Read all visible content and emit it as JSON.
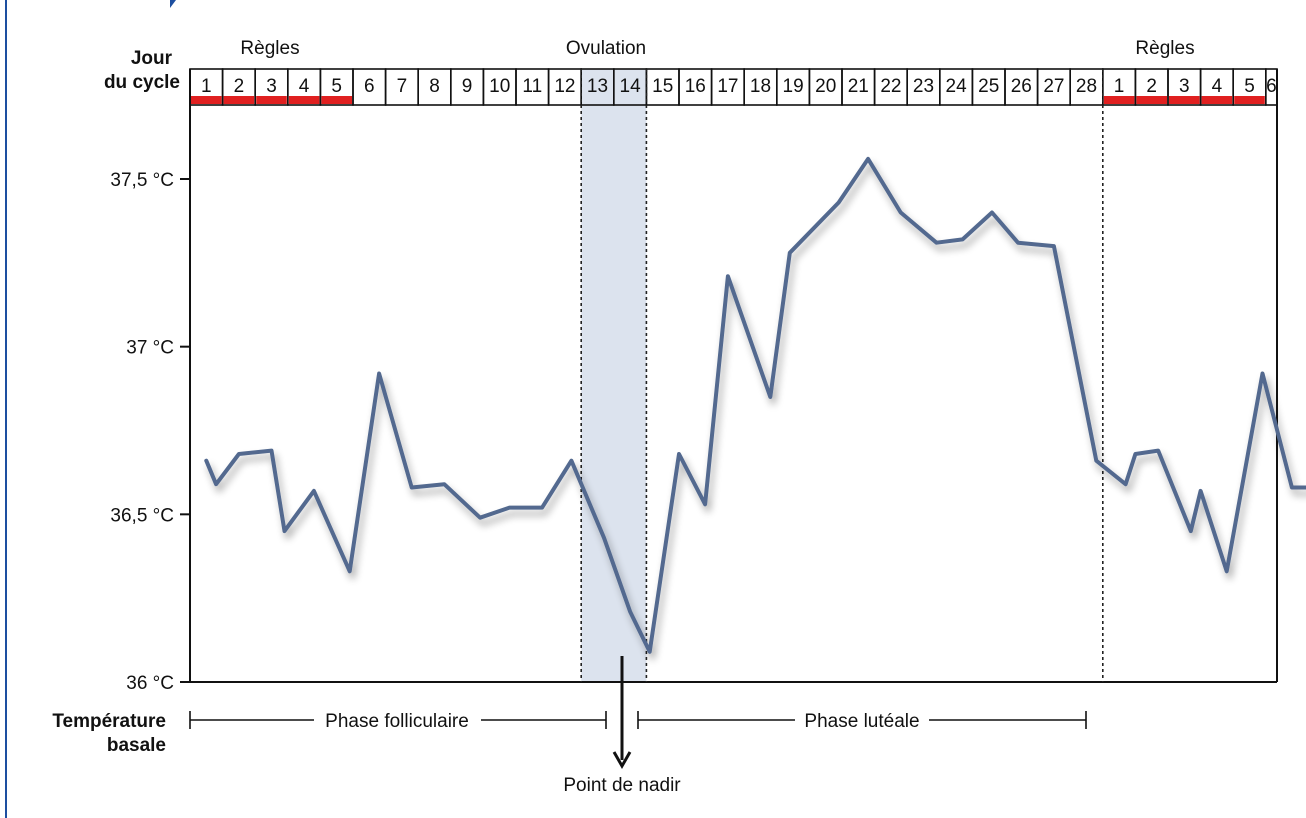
{
  "header_labels": {
    "jour": "Jour",
    "du_cycle": "du cycle",
    "regles_left": "Règles",
    "ovulation": "Ovulation",
    "regles_right": "Règles"
  },
  "temperature_label": {
    "line1": "Température",
    "line2": "basale"
  },
  "phases": {
    "follicular": "Phase folliculaire",
    "luteal": "Phase lutéale"
  },
  "nadir_label": "Point de nadir",
  "colors": {
    "line": "#52698f",
    "period_marker": "#e02020",
    "ovulation_band": "#dce3ee",
    "frame": "#111111",
    "left_accent": "#1d4fa0"
  },
  "chart_data": {
    "type": "line",
    "title": "",
    "xlabel": "Jour du cycle",
    "ylabel": "Température basale",
    "categories": [
      "1",
      "2",
      "3",
      "4",
      "5",
      "6",
      "7",
      "8",
      "9",
      "10",
      "11",
      "12",
      "13",
      "14",
      "15",
      "16",
      "17",
      "18",
      "19",
      "20",
      "21",
      "22",
      "23",
      "24",
      "25",
      "26",
      "27",
      "28",
      "1",
      "2",
      "3",
      "4",
      "5",
      "6"
    ],
    "period_days_index": [
      0,
      1,
      2,
      3,
      4,
      28,
      29,
      30,
      31,
      32
    ],
    "ovulation_days": [
      "13",
      "14"
    ],
    "yticks": [
      {
        "value": 36.0,
        "label": "36 °C"
      },
      {
        "value": 36.5,
        "label": "36,5 °C"
      },
      {
        "value": 37.0,
        "label": "37 °C"
      },
      {
        "value": 37.5,
        "label": "37,5 °C"
      }
    ],
    "ylim": [
      36.0,
      37.5
    ],
    "grid": false,
    "series": [
      {
        "x": [
          0.0,
          0.3,
          1.0,
          2.0,
          2.4,
          3.3,
          4.4,
          5.3,
          6.3,
          7.3,
          8.4,
          9.3,
          10.3,
          11.2,
          12.2,
          13.0,
          13.6,
          14.5,
          15.3,
          16.0,
          17.3,
          17.9,
          19.4,
          20.3,
          21.3,
          22.4,
          23.2,
          24.1,
          24.9,
          26.0,
          27.3,
          28.2,
          28.5,
          29.2,
          30.2,
          30.5,
          31.3,
          32.4,
          33.3,
          33.9
        ],
        "y": [
          36.66,
          36.59,
          36.68,
          36.69,
          36.45,
          36.57,
          36.33,
          36.92,
          36.58,
          36.59,
          36.49,
          36.52,
          36.52,
          36.66,
          36.43,
          36.21,
          36.09,
          36.68,
          36.53,
          37.21,
          36.85,
          37.28,
          37.43,
          37.56,
          37.4,
          37.31,
          37.32,
          37.4,
          37.31,
          37.3,
          36.66,
          36.59,
          36.68,
          36.69,
          36.45,
          36.57,
          36.33,
          36.92,
          36.58,
          36.58
        ]
      }
    ]
  }
}
